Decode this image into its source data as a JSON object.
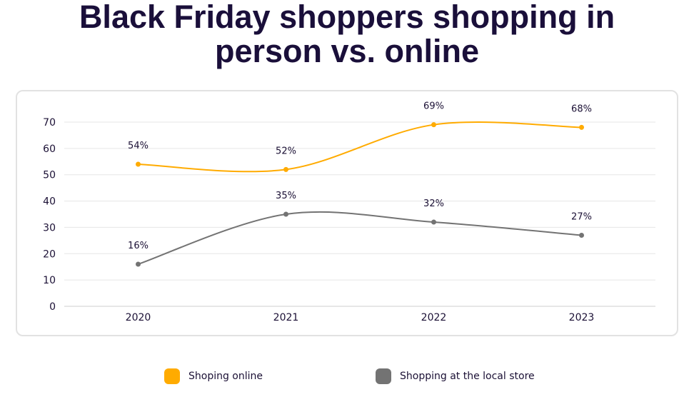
{
  "chart_data": {
    "type": "line",
    "title": "Black Friday shoppers shopping in person vs. online",
    "categories": [
      "2020",
      "2021",
      "2022",
      "2023"
    ],
    "ylim": [
      0,
      70
    ],
    "yticks": [
      0,
      10,
      20,
      30,
      40,
      50,
      60,
      70
    ],
    "grid": true,
    "legend_placement": "bottom",
    "smooth": true,
    "series": [
      {
        "name": "Shoping online",
        "values": [
          54,
          52,
          69,
          68
        ],
        "labels": [
          "54%",
          "52%",
          "69%",
          "68%"
        ],
        "color": "#ffab00"
      },
      {
        "name": "Shopping at the local store",
        "values": [
          16,
          35,
          32,
          27
        ],
        "labels": [
          "16%",
          "35%",
          "32%",
          "27%"
        ],
        "color": "#737373"
      }
    ]
  }
}
